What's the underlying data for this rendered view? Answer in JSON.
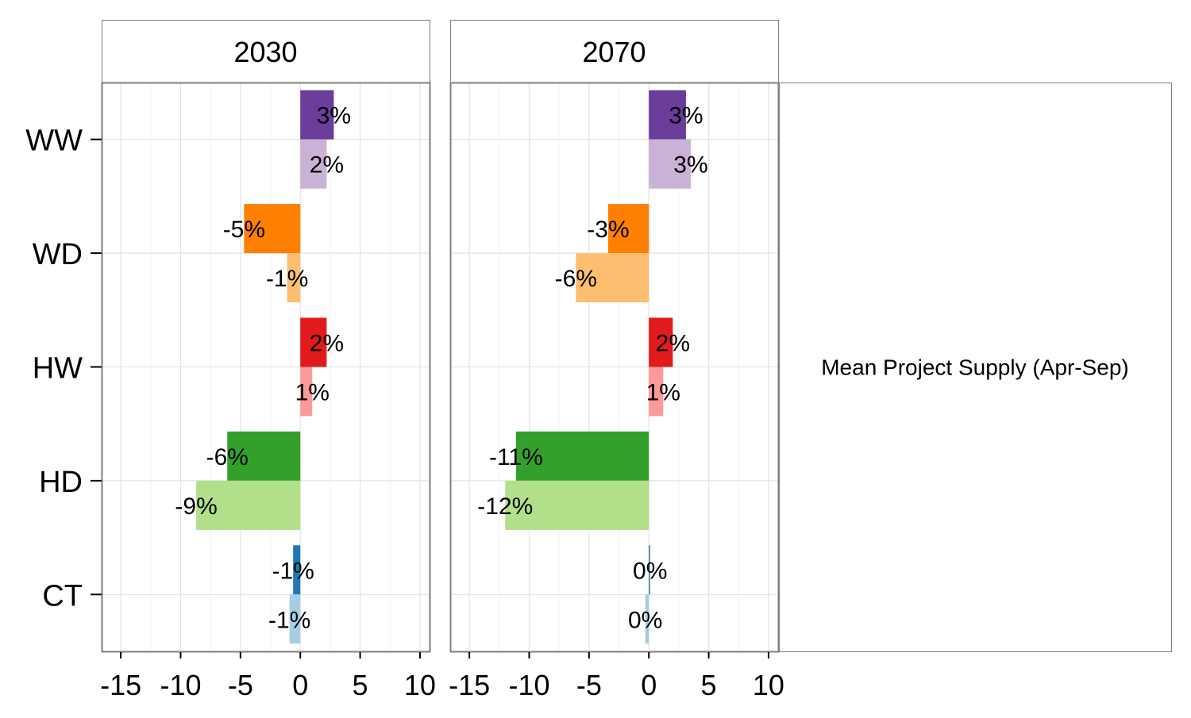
{
  "chart_data": {
    "type": "bar",
    "orientation": "horizontal",
    "categories": [
      "WW",
      "WD",
      "HW",
      "HD",
      "CT"
    ],
    "xlim": [
      -16.6,
      10.8
    ],
    "xticks": [
      -15,
      -10,
      -5,
      0,
      5,
      10
    ],
    "xtick_labels": [
      "-15",
      "-10",
      "-5",
      "0",
      "5",
      "10"
    ],
    "grid": true,
    "legend": "none",
    "side_label": "Mean Project Supply (Apr-Sep)",
    "panels": [
      {
        "title": "2030",
        "bars": [
          {
            "category": "WW",
            "value": 2.8,
            "label": "3%",
            "color": "#6a3d9a"
          },
          {
            "category": "WW",
            "value": 2.2,
            "label": "2%",
            "color": "#cab2d6"
          },
          {
            "category": "WD",
            "value": -4.7,
            "label": "-5%",
            "color": "#ff7f00"
          },
          {
            "category": "WD",
            "value": -1.1,
            "label": "-1%",
            "color": "#fdbf6f"
          },
          {
            "category": "HW",
            "value": 2.2,
            "label": "2%",
            "color": "#e31a1c"
          },
          {
            "category": "HW",
            "value": 1.0,
            "label": "1%",
            "color": "#fb9a99"
          },
          {
            "category": "HD",
            "value": -6.1,
            "label": "-6%",
            "color": "#33a02c"
          },
          {
            "category": "HD",
            "value": -8.7,
            "label": "-9%",
            "color": "#b2df8a"
          },
          {
            "category": "CT",
            "value": -0.6,
            "label": "-1%",
            "color": "#1f78b4"
          },
          {
            "category": "CT",
            "value": -0.9,
            "label": "-1%",
            "color": "#a6cee3"
          }
        ]
      },
      {
        "title": "2070",
        "bars": [
          {
            "category": "WW",
            "value": 3.1,
            "label": "3%",
            "color": "#6a3d9a"
          },
          {
            "category": "WW",
            "value": 3.5,
            "label": "3%",
            "color": "#cab2d6"
          },
          {
            "category": "WD",
            "value": -3.4,
            "label": "-3%",
            "color": "#ff7f00"
          },
          {
            "category": "WD",
            "value": -6.1,
            "label": "-6%",
            "color": "#fdbf6f"
          },
          {
            "category": "HW",
            "value": 2.0,
            "label": "2%",
            "color": "#e31a1c"
          },
          {
            "category": "HW",
            "value": 1.2,
            "label": "1%",
            "color": "#fb9a99"
          },
          {
            "category": "HD",
            "value": -11.1,
            "label": "-11%",
            "color": "#33a02c"
          },
          {
            "category": "HD",
            "value": -12.0,
            "label": "-12%",
            "color": "#b2df8a"
          },
          {
            "category": "CT",
            "value": 0.1,
            "label": "0%",
            "color": "#1f78b4"
          },
          {
            "category": "CT",
            "value": -0.3,
            "label": "0%",
            "color": "#a6cee3"
          }
        ]
      }
    ]
  }
}
